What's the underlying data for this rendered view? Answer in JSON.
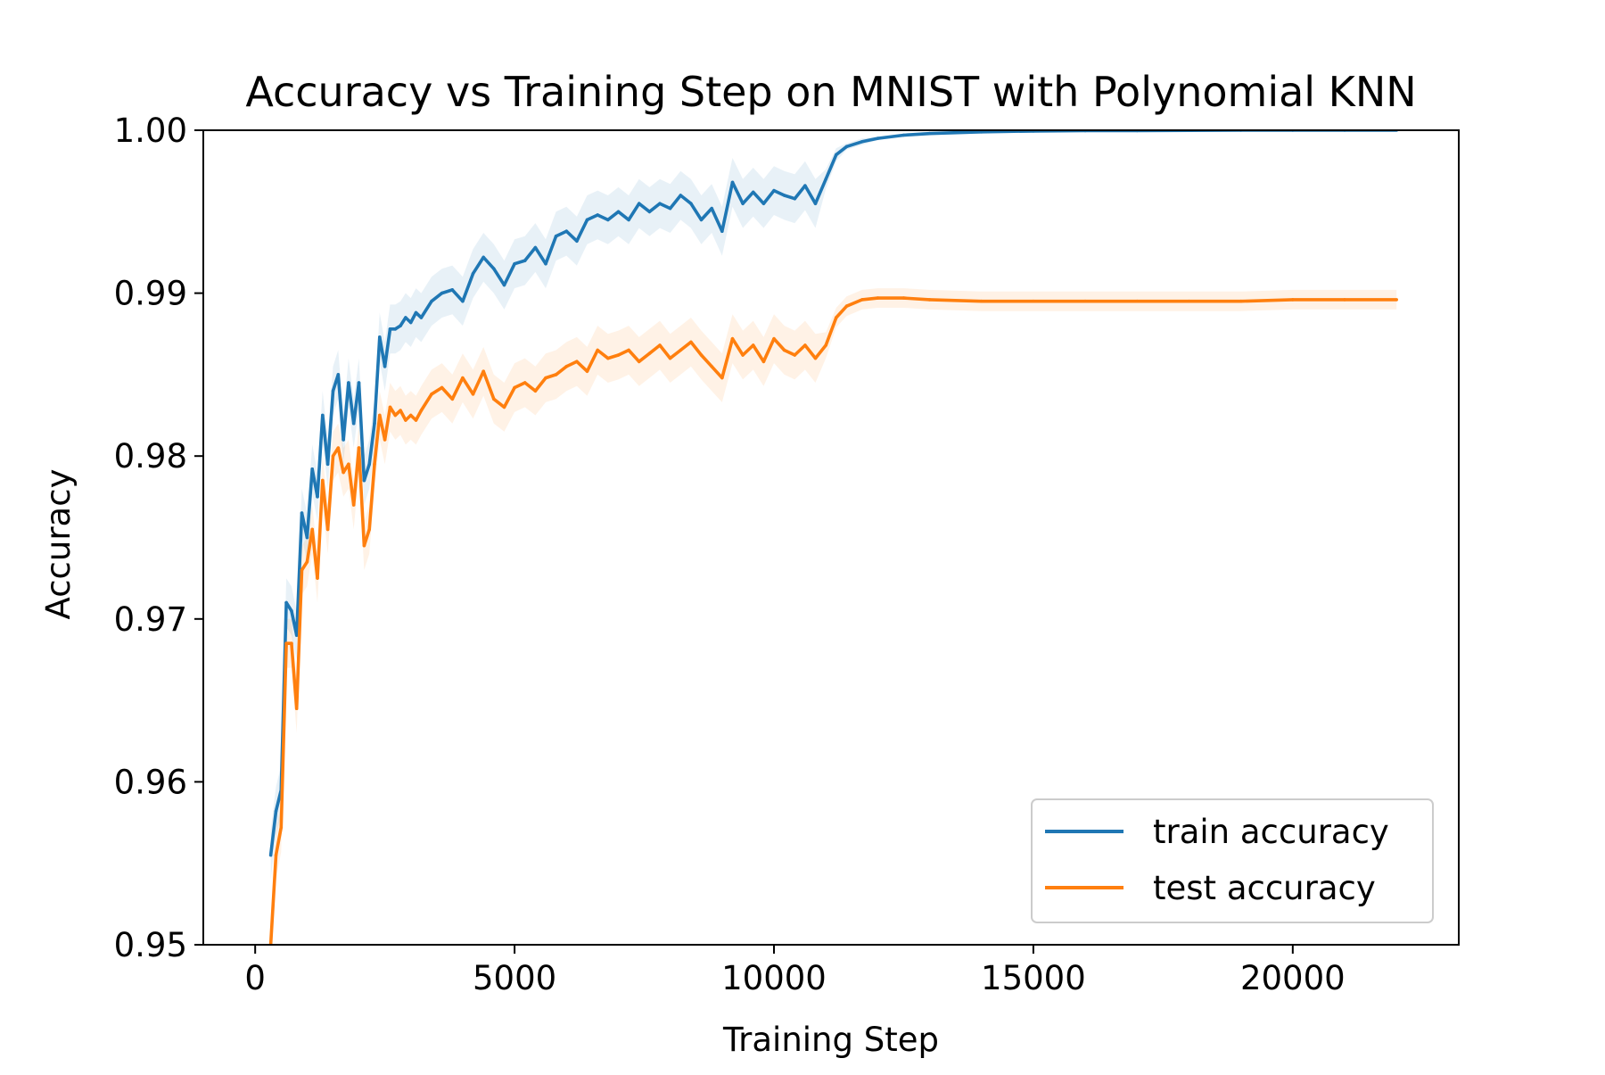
{
  "chart_data": {
    "type": "line",
    "title": "Accuracy vs Training Step on MNIST with Polynomial KNN",
    "xlabel": "Training Step",
    "ylabel": "Accuracy",
    "xlim": [
      -1000,
      23200
    ],
    "ylim": [
      0.95,
      1.0
    ],
    "xticks": [
      0,
      5000,
      10000,
      15000,
      20000
    ],
    "xtick_labels": [
      "0",
      "5000",
      "10000",
      "15000",
      "20000"
    ],
    "yticks": [
      0.95,
      0.96,
      0.97,
      0.98,
      0.99,
      1.0
    ],
    "ytick_labels": [
      "0.95",
      "0.96",
      "0.97",
      "0.98",
      "0.99",
      "1.00"
    ],
    "grid": false,
    "legend": {
      "position": "lower-right"
    },
    "series": [
      {
        "name": "train accuracy",
        "color": "#1f77b4",
        "x": [
          300,
          400,
          500,
          600,
          700,
          800,
          900,
          1000,
          1100,
          1200,
          1300,
          1400,
          1500,
          1600,
          1700,
          1800,
          1900,
          2000,
          2100,
          2200,
          2300,
          2400,
          2500,
          2600,
          2700,
          2800,
          2900,
          3000,
          3100,
          3200,
          3400,
          3600,
          3800,
          4000,
          4200,
          4400,
          4600,
          4800,
          5000,
          5200,
          5400,
          5600,
          5800,
          6000,
          6200,
          6400,
          6600,
          6800,
          7000,
          7200,
          7400,
          7600,
          7800,
          8000,
          8200,
          8400,
          8600,
          8800,
          9000,
          9200,
          9400,
          9600,
          9800,
          10000,
          10200,
          10400,
          10600,
          10800,
          11000,
          11200,
          11400,
          11700,
          12000,
          12500,
          13000,
          14000,
          15000,
          16000,
          17000,
          18000,
          19000,
          20000,
          21000,
          22000
        ],
        "y": [
          0.9555,
          0.9582,
          0.9595,
          0.971,
          0.9705,
          0.969,
          0.9765,
          0.975,
          0.9792,
          0.9775,
          0.9825,
          0.9795,
          0.984,
          0.985,
          0.981,
          0.9845,
          0.982,
          0.9845,
          0.9785,
          0.9795,
          0.982,
          0.9873,
          0.9855,
          0.9878,
          0.9878,
          0.988,
          0.9885,
          0.9882,
          0.9888,
          0.9885,
          0.9895,
          0.99,
          0.9902,
          0.9895,
          0.9912,
          0.9922,
          0.9915,
          0.9905,
          0.9918,
          0.992,
          0.9928,
          0.9918,
          0.9935,
          0.9938,
          0.9932,
          0.9945,
          0.9948,
          0.9945,
          0.995,
          0.9945,
          0.9955,
          0.995,
          0.9955,
          0.9952,
          0.996,
          0.9955,
          0.9945,
          0.9952,
          0.9938,
          0.9968,
          0.9955,
          0.9962,
          0.9955,
          0.9963,
          0.996,
          0.9958,
          0.9966,
          0.9955,
          0.997,
          0.9985,
          0.999,
          0.9993,
          0.9995,
          0.9997,
          0.9998,
          0.9999,
          0.99995,
          0.99997,
          0.99998,
          0.99999,
          1.0,
          1.0,
          1.0,
          1.0
        ],
        "band_halfwidth": [
          0.0015,
          0.0015,
          0.0015,
          0.0015,
          0.0015,
          0.0015,
          0.0015,
          0.0015,
          0.0015,
          0.0015,
          0.0015,
          0.0015,
          0.0015,
          0.0015,
          0.0015,
          0.0015,
          0.0015,
          0.0015,
          0.0015,
          0.0015,
          0.0015,
          0.0015,
          0.0015,
          0.0015,
          0.0015,
          0.0015,
          0.0015,
          0.0015,
          0.0015,
          0.0015,
          0.0015,
          0.0015,
          0.0015,
          0.0015,
          0.0015,
          0.0015,
          0.0015,
          0.0015,
          0.0015,
          0.0015,
          0.0015,
          0.0015,
          0.0015,
          0.0015,
          0.0015,
          0.0015,
          0.0015,
          0.0015,
          0.0015,
          0.0015,
          0.0015,
          0.0015,
          0.0015,
          0.0015,
          0.0015,
          0.0015,
          0.0015,
          0.0015,
          0.0015,
          0.0015,
          0.0015,
          0.0015,
          0.0015,
          0.0015,
          0.0015,
          0.0015,
          0.0015,
          0.0015,
          0.0006,
          0.0004,
          0.0002,
          0.0002,
          0.0001,
          0.0001,
          0.0001,
          0.0001,
          0.0001,
          0.0,
          0.0,
          0.0,
          0.0,
          0.0,
          0.0,
          0.0
        ]
      },
      {
        "name": "test accuracy",
        "color": "#ff7f0e",
        "x": [
          300,
          400,
          500,
          600,
          700,
          800,
          900,
          1000,
          1100,
          1200,
          1300,
          1400,
          1500,
          1600,
          1700,
          1800,
          1900,
          2000,
          2100,
          2200,
          2300,
          2400,
          2500,
          2600,
          2700,
          2800,
          2900,
          3000,
          3100,
          3200,
          3400,
          3600,
          3800,
          4000,
          4200,
          4400,
          4600,
          4800,
          5000,
          5200,
          5400,
          5600,
          5800,
          6000,
          6200,
          6400,
          6600,
          6800,
          7000,
          7200,
          7400,
          7600,
          7800,
          8000,
          8200,
          8400,
          8600,
          8800,
          9000,
          9200,
          9400,
          9600,
          9800,
          10000,
          10200,
          10400,
          10600,
          10800,
          11000,
          11200,
          11400,
          11700,
          12000,
          12500,
          13000,
          14000,
          15000,
          16000,
          17000,
          18000,
          19000,
          20000,
          21000,
          22000
        ],
        "y": [
          0.95,
          0.9555,
          0.9572,
          0.9685,
          0.9685,
          0.9645,
          0.973,
          0.9735,
          0.9755,
          0.9725,
          0.9785,
          0.9755,
          0.98,
          0.9805,
          0.979,
          0.9795,
          0.977,
          0.9805,
          0.9745,
          0.9755,
          0.9795,
          0.9825,
          0.981,
          0.983,
          0.9825,
          0.9828,
          0.9822,
          0.9825,
          0.9822,
          0.9828,
          0.9838,
          0.9842,
          0.9835,
          0.9848,
          0.9838,
          0.9852,
          0.9835,
          0.983,
          0.9842,
          0.9845,
          0.984,
          0.9848,
          0.985,
          0.9855,
          0.9858,
          0.9852,
          0.9865,
          0.986,
          0.9862,
          0.9865,
          0.9858,
          0.9863,
          0.9868,
          0.986,
          0.9865,
          0.987,
          0.9862,
          0.9855,
          0.9848,
          0.9872,
          0.9862,
          0.9868,
          0.9858,
          0.9872,
          0.9865,
          0.9862,
          0.9868,
          0.986,
          0.9868,
          0.9885,
          0.9892,
          0.9896,
          0.9897,
          0.9897,
          0.9896,
          0.9895,
          0.9895,
          0.9895,
          0.9895,
          0.9895,
          0.9895,
          0.9896,
          0.9896,
          0.9896
        ],
        "band_halfwidth": [
          0.0015,
          0.0015,
          0.0015,
          0.0015,
          0.0015,
          0.0015,
          0.0015,
          0.0015,
          0.0015,
          0.0015,
          0.0015,
          0.0015,
          0.0015,
          0.0015,
          0.0015,
          0.0015,
          0.0015,
          0.0015,
          0.0015,
          0.0015,
          0.0015,
          0.0015,
          0.0015,
          0.0015,
          0.0015,
          0.0015,
          0.0015,
          0.0015,
          0.0015,
          0.0015,
          0.0015,
          0.0015,
          0.0015,
          0.0015,
          0.0015,
          0.0015,
          0.0015,
          0.0015,
          0.0015,
          0.0015,
          0.0015,
          0.0015,
          0.0015,
          0.0015,
          0.0015,
          0.0015,
          0.0015,
          0.0015,
          0.0015,
          0.0015,
          0.0015,
          0.0015,
          0.0015,
          0.0015,
          0.0015,
          0.0015,
          0.0015,
          0.0015,
          0.0015,
          0.0015,
          0.0015,
          0.0015,
          0.0015,
          0.0015,
          0.0015,
          0.0015,
          0.0015,
          0.0015,
          0.0008,
          0.0006,
          0.0006,
          0.0006,
          0.0006,
          0.0006,
          0.0006,
          0.0006,
          0.0006,
          0.0006,
          0.0006,
          0.0006,
          0.0006,
          0.0006,
          0.0006,
          0.0006
        ]
      }
    ]
  }
}
